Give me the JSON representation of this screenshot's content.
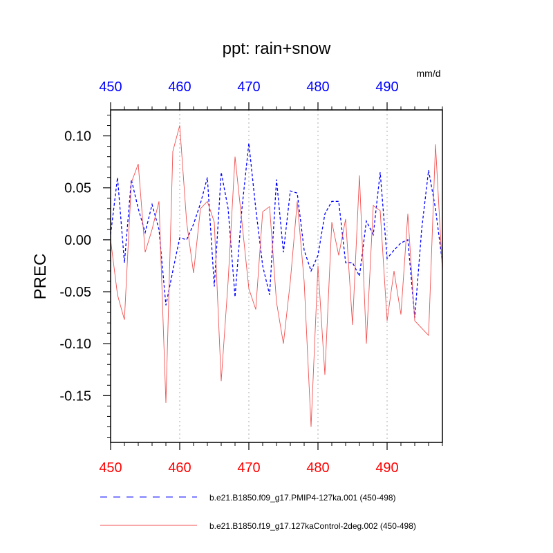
{
  "chart_data": {
    "type": "line",
    "title": "ppt: rain+snow",
    "units": "mm/d",
    "ylabel": "PREC",
    "xlabel": "",
    "xlim": [
      450,
      498
    ],
    "ylim": [
      -0.195,
      0.125
    ],
    "grid": "dotted vertical at major x ticks",
    "legend_position": "bottom",
    "x_ticks": [
      450,
      460,
      470,
      480,
      490
    ],
    "x_tick_labels": [
      "450",
      "460",
      "470",
      "480",
      "490"
    ],
    "y_ticks": [
      -0.15,
      -0.1,
      -0.05,
      0.0,
      0.05,
      0.1
    ],
    "y_tick_labels": [
      "-0.15",
      "-0.10",
      "-0.05",
      "0.00",
      "0.05",
      "0.10"
    ],
    "colors": {
      "top_axis_labels": "#0000ff",
      "bottom_axis_labels": "#ff0000",
      "series_1": "#0000ff",
      "series_2": "#f05050"
    },
    "x": [
      450,
      451,
      452,
      453,
      454,
      455,
      456,
      457,
      458,
      459,
      460,
      461,
      462,
      463,
      464,
      465,
      466,
      467,
      468,
      469,
      470,
      471,
      472,
      473,
      474,
      475,
      476,
      477,
      478,
      479,
      480,
      481,
      482,
      483,
      484,
      485,
      486,
      487,
      488,
      489,
      490,
      491,
      492,
      493,
      494,
      495,
      496,
      497,
      498
    ],
    "series": [
      {
        "name": "b.e21.B1850.f09_g17.PMIP4-127ka.001 (450-498)",
        "style": "dashed",
        "color": "#0000ff",
        "values": [
          0.005,
          0.06,
          -0.022,
          0.058,
          0.03,
          0.007,
          0.034,
          0.01,
          -0.063,
          -0.03,
          0.002,
          0.0,
          0.015,
          0.035,
          0.06,
          -0.045,
          0.065,
          0.03,
          -0.055,
          0.03,
          0.093,
          0.03,
          -0.025,
          -0.053,
          0.058,
          -0.012,
          0.047,
          0.045,
          -0.01,
          -0.03,
          -0.015,
          0.025,
          0.037,
          0.037,
          -0.022,
          -0.022,
          -0.035,
          0.018,
          0.005,
          0.065,
          -0.018,
          -0.01,
          -0.003,
          0.0,
          -0.075,
          0.01,
          0.067,
          0.03,
          -0.022
        ]
      },
      {
        "name": "b.e21.B1850.f19_g17.127kaControl-2deg.002 (450-498)",
        "style": "solid",
        "color": "#f05050",
        "values": [
          0.0,
          -0.053,
          -0.077,
          0.055,
          0.073,
          -0.012,
          0.01,
          0.037,
          -0.157,
          0.085,
          0.11,
          0.017,
          -0.032,
          0.03,
          0.037,
          0.017,
          -0.136,
          -0.04,
          0.08,
          0.017,
          -0.047,
          -0.067,
          0.027,
          0.032,
          -0.06,
          -0.1,
          -0.04,
          0.037,
          -0.04,
          -0.18,
          -0.025,
          -0.13,
          0.017,
          -0.015,
          0.02,
          -0.082,
          0.062,
          -0.1,
          0.033,
          0.028,
          -0.078,
          -0.03,
          -0.072,
          0.025,
          -0.078,
          -0.085,
          -0.092,
          0.092,
          -0.03
        ]
      }
    ]
  }
}
